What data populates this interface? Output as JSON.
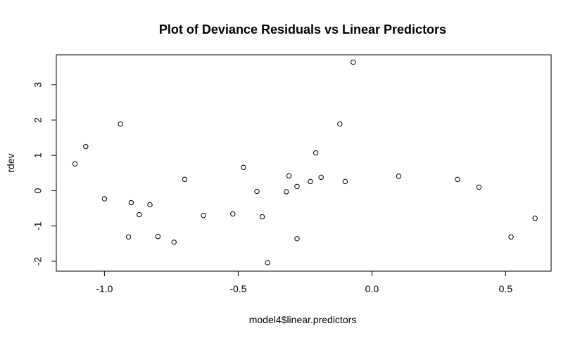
{
  "chart_data": {
    "type": "scatter",
    "title": "Plot of Deviance Residuals vs Linear Predictors",
    "xlabel": "model4$linear.predictors",
    "ylabel": "rdev",
    "xlim": [
      -1.18,
      0.67
    ],
    "ylim": [
      -2.28,
      3.85
    ],
    "x_ticks": [
      -1.0,
      -0.5,
      0.0,
      0.5
    ],
    "x_tick_labels": [
      "-1.0",
      "-0.5",
      "0.0",
      "0.5"
    ],
    "y_ticks": [
      -2,
      -1,
      0,
      1,
      2,
      3
    ],
    "y_tick_labels": [
      "-2",
      "-1",
      "0",
      "1",
      "2",
      "3"
    ],
    "grid": false,
    "marker": "open-circle",
    "x": [
      -1.11,
      -1.07,
      -1.0,
      -0.94,
      -0.91,
      -0.9,
      -0.87,
      -0.83,
      -0.8,
      -0.74,
      -0.7,
      -0.63,
      -0.52,
      -0.48,
      -0.43,
      -0.41,
      -0.39,
      -0.32,
      -0.31,
      -0.28,
      -0.28,
      -0.23,
      -0.21,
      -0.19,
      -0.12,
      -0.1,
      -0.07,
      0.1,
      0.32,
      0.4,
      0.52,
      0.61
    ],
    "y": [
      0.76,
      1.25,
      -0.23,
      1.89,
      -1.31,
      -0.34,
      -0.68,
      -0.4,
      -1.3,
      -1.46,
      0.32,
      -0.7,
      -0.66,
      0.66,
      -0.02,
      -0.74,
      -2.04,
      -0.03,
      0.42,
      -1.36,
      0.12,
      0.26,
      1.07,
      0.38,
      1.89,
      0.26,
      3.64,
      0.41,
      0.32,
      0.1,
      -1.31,
      -0.78
    ]
  }
}
